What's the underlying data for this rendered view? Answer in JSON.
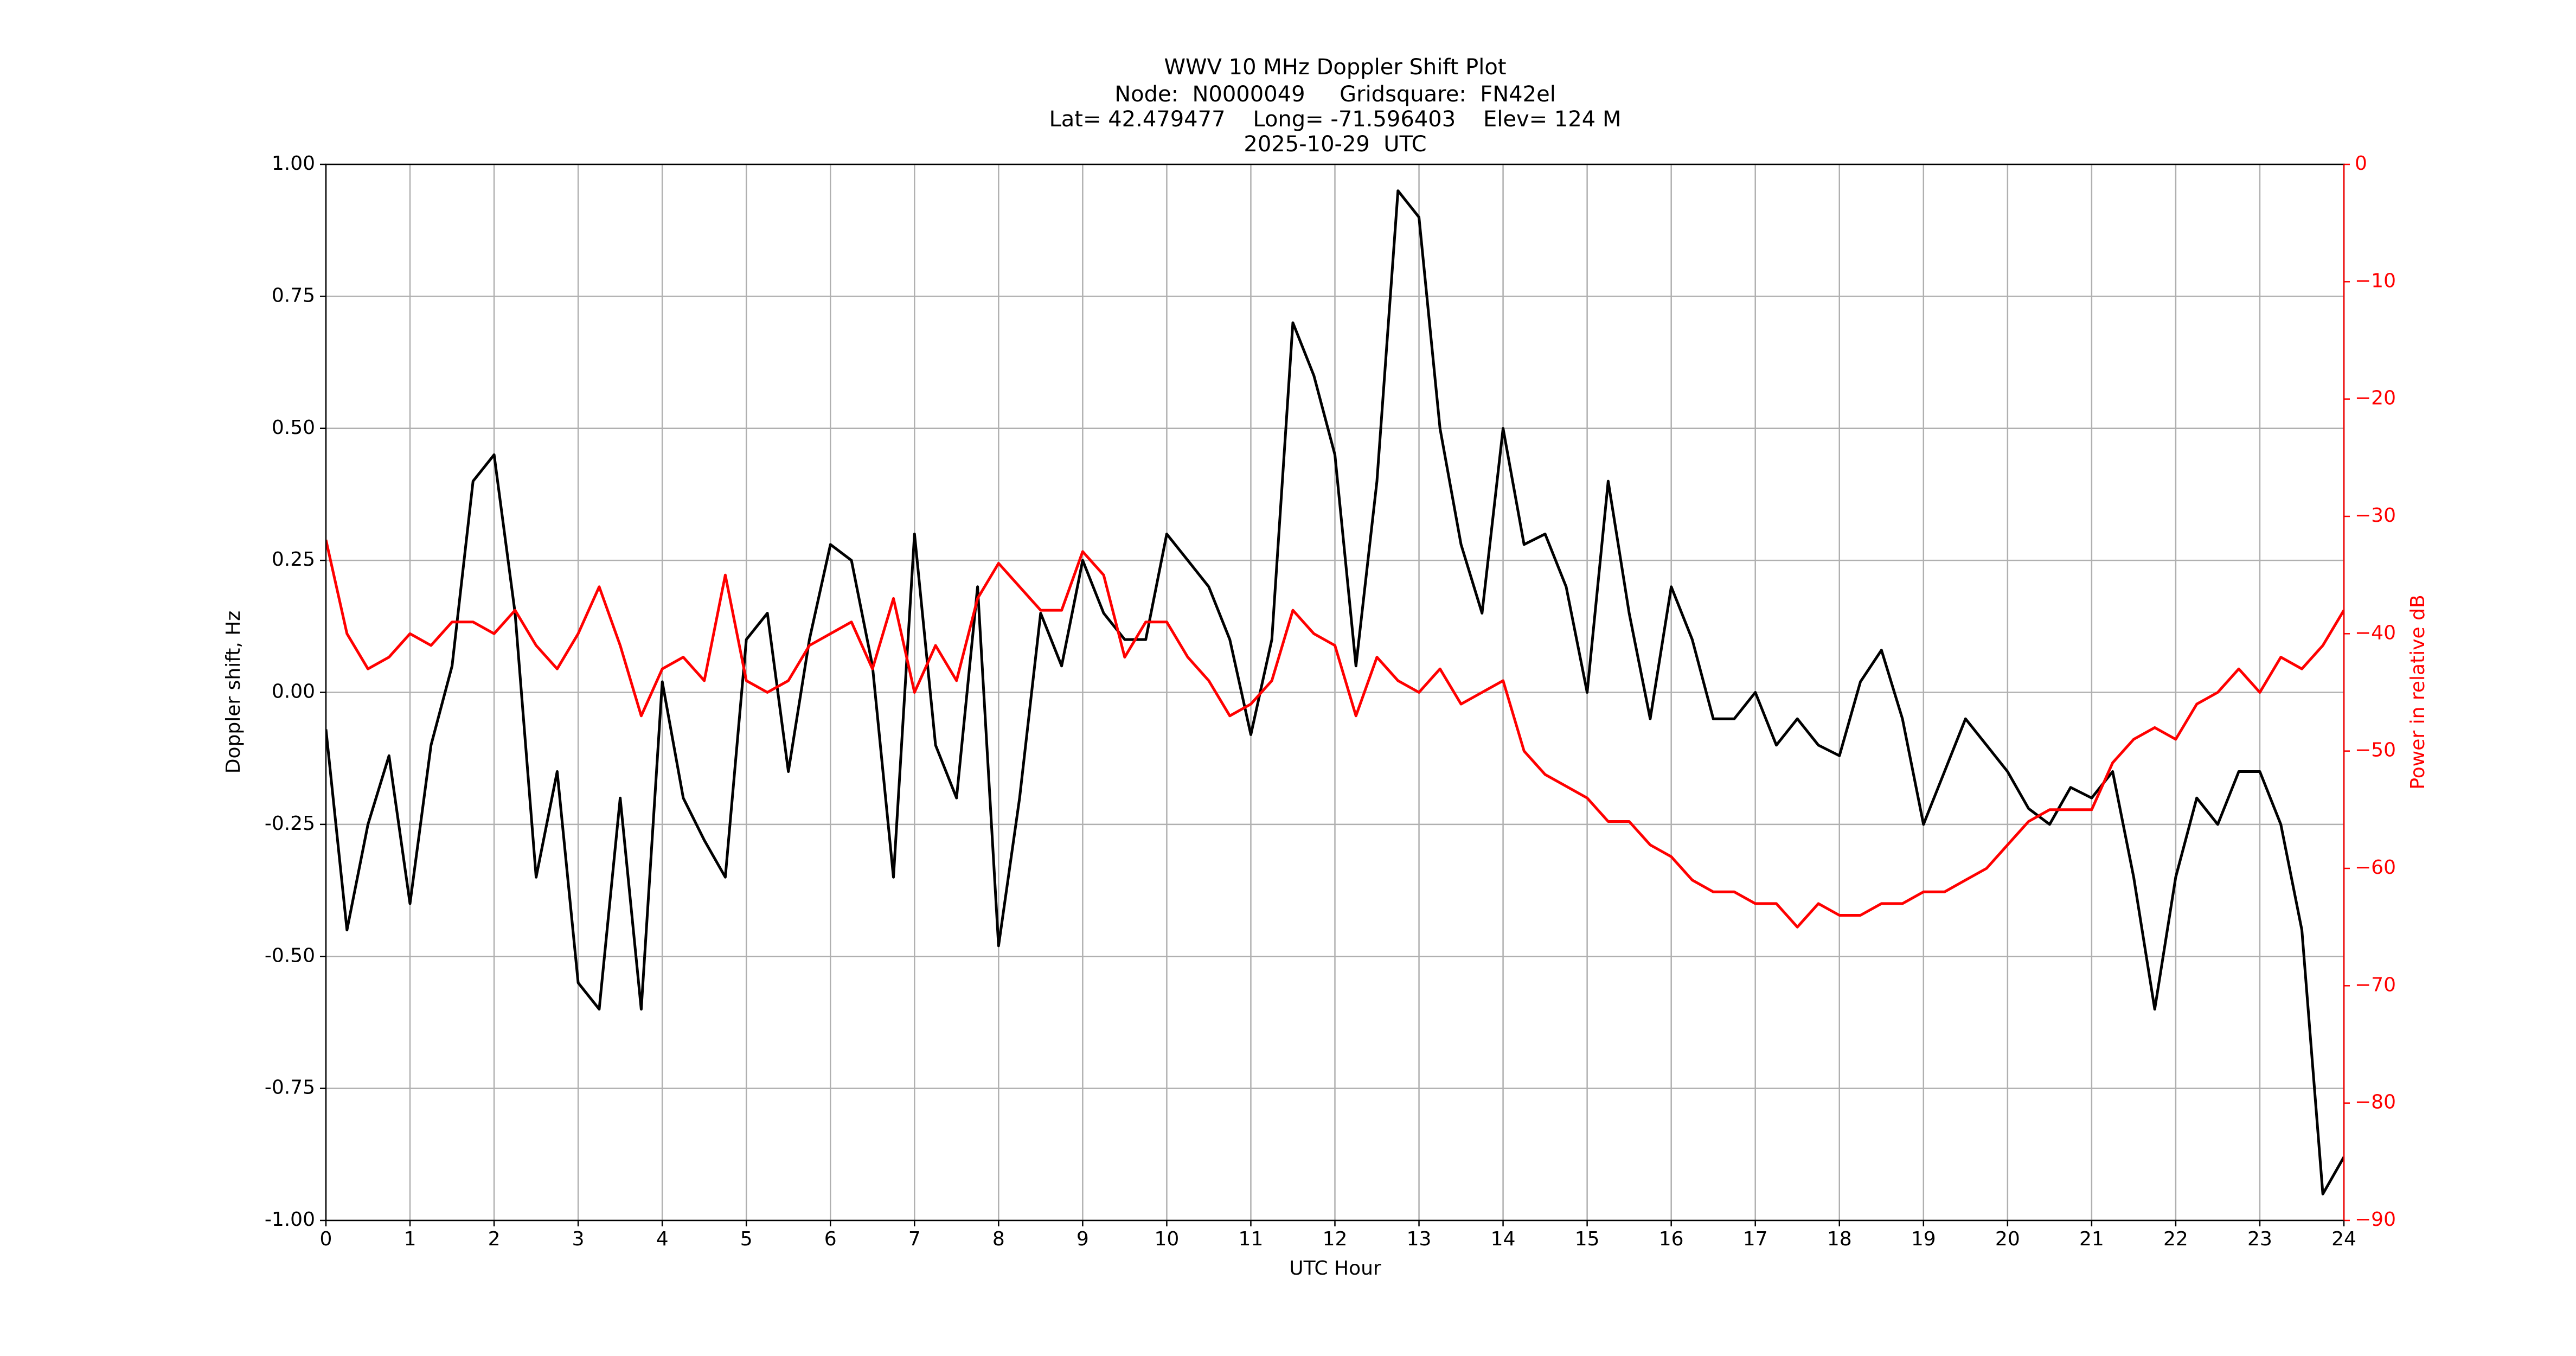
{
  "chart_data": {
    "type": "line",
    "title": "WWV 10 MHz Doppler Shift Plot",
    "subtitle": [
      "Node:  N0000049     Gridsquare:  FN42el",
      "Lat= 42.479477    Long= -71.596403    Elev= 124 M",
      "2025-10-29  UTC"
    ],
    "xlabel": "UTC Hour",
    "ylabel": "Doppler shift, Hz",
    "y2label": "Power in relative dB",
    "xlim": [
      0,
      24
    ],
    "xticks": [
      0,
      1,
      2,
      3,
      4,
      5,
      6,
      7,
      8,
      9,
      10,
      11,
      12,
      13,
      14,
      15,
      16,
      17,
      18,
      19,
      20,
      21,
      22,
      23,
      24
    ],
    "ylim": [
      -1,
      1
    ],
    "yticks": [
      {
        "value": -1,
        "label": "-1.00"
      },
      {
        "value": -0.75,
        "label": "-0.75"
      },
      {
        "value": -0.5,
        "label": "-0.50"
      },
      {
        "value": -0.25,
        "label": "-0.25"
      },
      {
        "value": 0,
        "label": "0.00"
      },
      {
        "value": 0.25,
        "label": "0.25"
      },
      {
        "value": 0.5,
        "label": "0.50"
      },
      {
        "value": 0.75,
        "label": "0.75"
      },
      {
        "value": 1,
        "label": "1.00"
      }
    ],
    "y2lim": [
      -90,
      0
    ],
    "y2ticks": [
      {
        "value": -90,
        "label": "−90"
      },
      {
        "value": -80,
        "label": "−80"
      },
      {
        "value": -70,
        "label": "−70"
      },
      {
        "value": -60,
        "label": "−60"
      },
      {
        "value": -50,
        "label": "−50"
      },
      {
        "value": -40,
        "label": "−40"
      },
      {
        "value": -30,
        "label": "−30"
      },
      {
        "value": -20,
        "label": "−20"
      },
      {
        "value": -10,
        "label": "−10"
      },
      0
    ],
    "y2color": "#ff0000",
    "grid": true,
    "x": [
      0,
      0.25,
      0.5,
      0.75,
      1,
      1.25,
      1.5,
      1.75,
      2,
      2.25,
      2.5,
      2.75,
      3,
      3.25,
      3.5,
      3.75,
      4,
      4.25,
      4.5,
      4.75,
      5,
      5.25,
      5.5,
      5.75,
      6,
      6.25,
      6.5,
      6.75,
      7,
      7.25,
      7.5,
      7.75,
      8,
      8.25,
      8.5,
      8.75,
      9,
      9.25,
      9.5,
      9.75,
      10,
      10.25,
      10.5,
      10.75,
      11,
      11.25,
      11.5,
      11.75,
      12,
      12.25,
      12.5,
      12.75,
      13,
      13.25,
      13.5,
      13.75,
      14,
      14.25,
      14.5,
      14.75,
      15,
      15.25,
      15.5,
      15.75,
      16,
      16.25,
      16.5,
      16.75,
      17,
      17.25,
      17.5,
      17.75,
      18,
      18.25,
      18.5,
      18.75,
      19,
      19.25,
      19.5,
      19.75,
      20,
      20.25,
      20.5,
      20.75,
      21,
      21.25,
      21.5,
      21.75,
      22,
      22.25,
      22.5,
      22.75,
      23,
      23.25,
      23.5,
      23.75,
      24
    ],
    "series": [
      {
        "color": "#000000",
        "values": [
          -0.07,
          -0.45,
          -0.25,
          -0.12,
          -0.4,
          -0.1,
          0.05,
          0.4,
          0.45,
          0.15,
          -0.35,
          -0.15,
          -0.55,
          -0.6,
          -0.2,
          -0.6,
          0.02,
          -0.2,
          -0.28,
          -0.35,
          0.1,
          0.15,
          -0.15,
          0.1,
          0.28,
          0.25,
          0.05,
          -0.35,
          0.3,
          -0.1,
          -0.2,
          0.2,
          -0.48,
          -0.2,
          0.15,
          0.05,
          0.25,
          0.15,
          0.1,
          0.1,
          0.3,
          0.25,
          0.2,
          0.1,
          -0.08,
          0.1,
          0.7,
          0.6,
          0.45,
          0.05,
          0.4,
          0.95,
          0.9,
          0.5,
          0.28,
          0.15,
          0.5,
          0.28,
          0.3,
          0.2,
          0,
          0.4,
          0.15,
          -0.05,
          0.2,
          0.1,
          -0.05,
          -0.05,
          0,
          -0.1,
          -0.05,
          -0.1,
          -0.12,
          0.02,
          0.08,
          -0.05,
          -0.25,
          -0.15,
          -0.05,
          -0.1,
          -0.15,
          -0.22,
          -0.25,
          -0.18,
          -0.2,
          -0.15,
          -0.35,
          -0.6,
          -0.35,
          -0.2,
          -0.25,
          -0.15,
          -0.15,
          -0.25,
          -0.45,
          -0.95,
          -0.88
        ]
      },
      {
        "color": "#ff0000",
        "axis": "y2",
        "values": [
          -32,
          -40,
          -43,
          -42,
          -40,
          -41,
          -39,
          -39,
          -40,
          -38,
          -41,
          -43,
          -40,
          -36,
          -41,
          -47,
          -43,
          -42,
          -44,
          -35,
          -44,
          -45,
          -44,
          -41,
          -40,
          -39,
          -43,
          -37,
          -45,
          -41,
          -44,
          -37,
          -34,
          -36,
          -38,
          -38,
          -33,
          -35,
          -42,
          -39,
          -39,
          -42,
          -44,
          -47,
          -46,
          -44,
          -38,
          -40,
          -41,
          -47,
          -42,
          -44,
          -45,
          -43,
          -46,
          -45,
          -44,
          -50,
          -52,
          -53,
          -54,
          -56,
          -56,
          -58,
          -59,
          -61,
          -62,
          -62,
          -63,
          -63,
          -65,
          -63,
          -64,
          -64,
          -63,
          -63,
          -62,
          -62,
          -61,
          -60,
          -58,
          -56,
          -55,
          -55,
          -55,
          -51,
          -49,
          -48,
          -49,
          -46,
          -45,
          -43,
          -45,
          -42,
          -43,
          -41,
          -38
        ]
      }
    ]
  }
}
